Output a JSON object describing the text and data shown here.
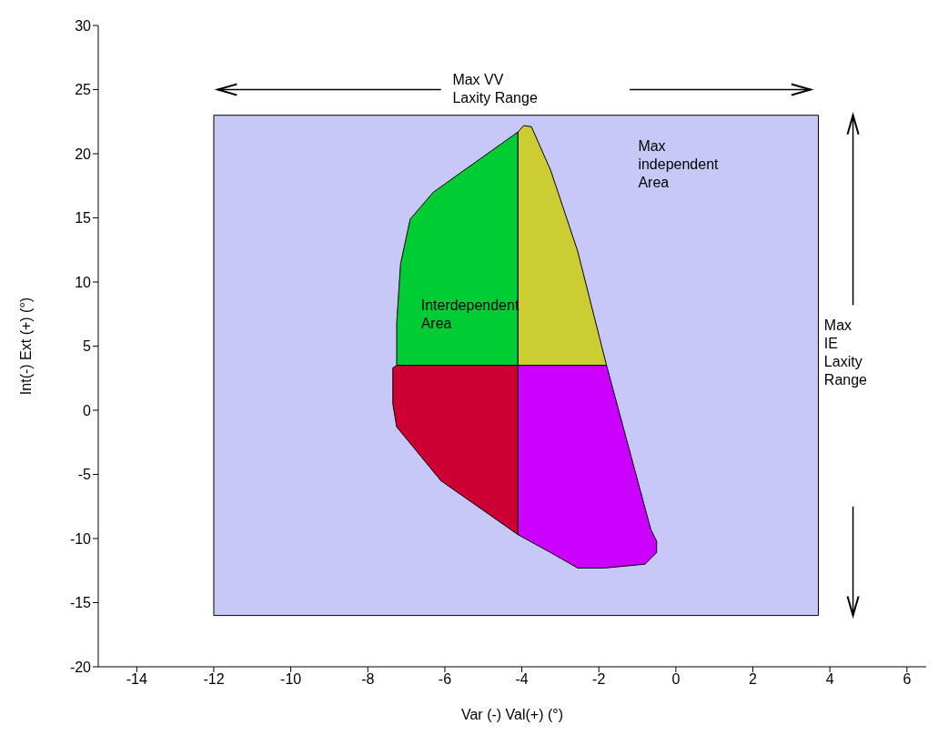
{
  "chart_data": {
    "type": "area",
    "xlabel": "Var (-) Val(+) (°)",
    "ylabel": "Int(-) Ext (+) (°)",
    "xlim": [
      -15,
      6.5
    ],
    "ylim": [
      -20,
      30
    ],
    "xticks": [
      -14,
      -12,
      -10,
      -8,
      -6,
      -4,
      -2,
      0,
      2,
      4,
      6
    ],
    "yticks": [
      -20,
      -15,
      -10,
      -5,
      0,
      5,
      10,
      15,
      20,
      25,
      30
    ],
    "series": [
      {
        "color": "#c8c8f8",
        "x": [
          -12,
          3.7,
          3.7,
          -12
        ],
        "values": [
          23,
          23,
          -16,
          -16
        ]
      },
      {
        "color": "#00cc33",
        "x": [
          -4.1,
          -7.25,
          -7.25,
          -7.15,
          -6.9,
          -6.3,
          -4.1
        ],
        "values": [
          3.5,
          3.5,
          6.8,
          11.4,
          14.9,
          17,
          21.7
        ]
      },
      {
        "color": "#cccc33",
        "x": [
          -4.1,
          -3.95,
          -3.75,
          -3.25,
          -2.55,
          -1.8,
          -4.1
        ],
        "values": [
          21.7,
          22.2,
          22.1,
          18.7,
          12.4,
          3.5,
          3.5
        ]
      },
      {
        "color": "#cc0033",
        "x": [
          -4.1,
          -7.25,
          -7.35,
          -7.35,
          -7.25,
          -6.1,
          -4.1
        ],
        "values": [
          3.5,
          3.5,
          3.3,
          0.5,
          -1.3,
          -5.5,
          -9.7
        ]
      },
      {
        "color": "#cc00ff",
        "x": [
          -4.1,
          -4.1,
          -3.25,
          -2.55,
          -1.85,
          -0.8,
          -0.5,
          -0.5,
          -0.65,
          -1.8
        ],
        "values": [
          3.5,
          -9.7,
          -11.1,
          -12.3,
          -12.3,
          -12,
          -11.1,
          -10.2,
          -9.3,
          3.5
        ]
      }
    ],
    "annotations": [
      "Max VV\nLaxity Range",
      "Max\nindependent\nArea",
      "Interdependent\nArea",
      "Max\nIE\nLaxity\nRange"
    ]
  }
}
